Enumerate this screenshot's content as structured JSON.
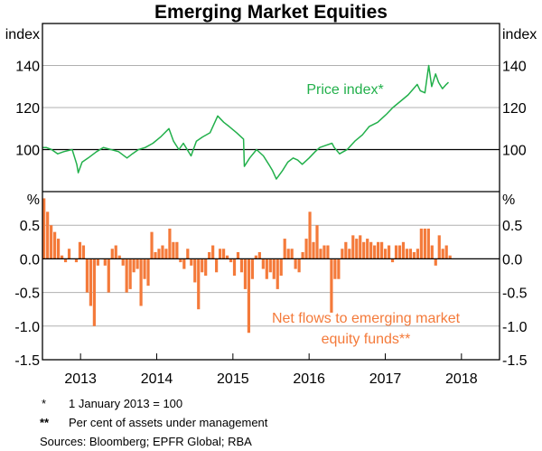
{
  "chart_data": [
    {
      "type": "line",
      "title": "Emerging Market Equities",
      "ylabel_left": "index",
      "ylabel_right": "index",
      "ylim": [
        80,
        160
      ],
      "yticks": [
        100,
        120,
        140
      ],
      "ytick_labels": [
        "100",
        "120",
        "140"
      ],
      "reference_line": 100,
      "grid": true,
      "series": [
        {
          "name": "Price index*",
          "color": "#22b04b",
          "x": [
            2012.5,
            2012.55,
            2012.62,
            2012.7,
            2012.78,
            2012.89,
            2012.95,
            2012.97,
            2013.02,
            2013.1,
            2013.21,
            2013.3,
            2013.4,
            2013.5,
            2013.61,
            2013.68,
            2013.76,
            2013.85,
            2013.95,
            2014.05,
            2014.16,
            2014.22,
            2014.29,
            2014.35,
            2014.45,
            2014.52,
            2014.6,
            2014.7,
            2014.8,
            2014.88,
            2014.95,
            2015.05,
            2015.14,
            2015.15,
            2015.22,
            2015.31,
            2015.4,
            2015.47,
            2015.52,
            2015.57,
            2015.65,
            2015.72,
            2015.79,
            2015.85,
            2015.91,
            2016.0,
            2016.08,
            2016.14,
            2016.22,
            2016.3,
            2016.33,
            2016.4,
            2016.5,
            2016.6,
            2016.7,
            2016.79,
            2016.9,
            2017.02,
            2017.1,
            2017.2,
            2017.3,
            2017.42,
            2017.46,
            2017.52,
            2017.57,
            2017.61,
            2017.66,
            2017.7,
            2017.75,
            2017.8,
            2017.83
          ],
          "values": [
            101,
            101,
            100,
            98,
            99,
            100,
            93,
            89,
            94,
            96,
            99,
            101,
            100,
            99,
            96,
            98,
            100,
            101,
            103,
            106,
            110,
            104,
            100,
            103,
            97,
            104,
            106,
            108,
            116,
            113,
            111,
            108,
            105,
            92,
            96,
            100,
            97,
            93,
            90,
            86,
            90,
            94,
            96,
            95,
            93,
            96,
            99,
            101,
            102,
            103,
            101,
            98,
            100,
            104,
            107,
            111,
            113,
            117,
            120,
            123,
            126,
            131,
            128,
            127,
            140,
            130,
            136,
            132,
            129,
            131,
            132
          ]
        }
      ],
      "annotation": "Price index*"
    },
    {
      "type": "bar",
      "ylabel_left": "%",
      "ylabel_right": "%",
      "ylim": [
        -1.5,
        1.0
      ],
      "yticks": [
        0.5,
        0,
        -0.5,
        -1.0,
        -1.5
      ],
      "ytick_labels": [
        "0.5",
        "0.0",
        "-0.5",
        "-1.0",
        "-1.5"
      ],
      "grid": true,
      "x_start": 2012.52,
      "x_end": 2017.85,
      "series": [
        {
          "name": "Net flows to emerging market equity funds**",
          "color": "#f47a3a",
          "values": [
            0.9,
            0.7,
            0.5,
            0.4,
            0.3,
            0.05,
            -0.05,
            0.15,
            0.0,
            -0.05,
            0.25,
            0.2,
            -0.5,
            -0.7,
            -1.0,
            -0.1,
            0.0,
            -0.1,
            -0.5,
            0.15,
            0.2,
            0.05,
            -0.1,
            -0.5,
            -0.45,
            -0.2,
            -0.15,
            -0.7,
            -0.3,
            -0.4,
            0.4,
            0.1,
            0.15,
            0.2,
            0.15,
            0.45,
            0.25,
            0.25,
            -0.05,
            -0.15,
            0.15,
            -0.1,
            -0.35,
            -0.75,
            -0.2,
            -0.25,
            0.1,
            0.2,
            -0.2,
            0.15,
            0.15,
            0.05,
            -0.05,
            -0.25,
            0.1,
            -0.2,
            -0.45,
            -1.1,
            -0.3,
            0.05,
            0.1,
            -0.15,
            -0.3,
            -0.2,
            -0.3,
            -0.45,
            -0.25,
            0.3,
            0.15,
            0.15,
            -0.15,
            -0.2,
            0.1,
            0.3,
            0.7,
            0.25,
            0.5,
            0.15,
            0.2,
            0.2,
            -0.8,
            -0.3,
            -0.3,
            0.15,
            0.25,
            0.15,
            0.35,
            0.3,
            0.35,
            0.25,
            0.3,
            0.25,
            0.2,
            0.25,
            0.25,
            0.15,
            0.2,
            -0.05,
            0.2,
            0.2,
            0.25,
            0.15,
            0.15,
            0.1,
            0.15,
            0.45,
            0.45,
            0.45,
            0.2,
            -0.1,
            0.35,
            0.15,
            0.2,
            0.05
          ]
        }
      ],
      "annotation": [
        "Net flows to emerging market",
        "equity funds**"
      ]
    }
  ],
  "xaxis": {
    "xlim": [
      2012.5,
      2018.5
    ],
    "tick_labels": [
      "2013",
      "2014",
      "2015",
      "2016",
      "2017",
      "2018"
    ]
  },
  "footnotes": [
    {
      "marker": "*",
      "text": "1 January 2013 = 100"
    },
    {
      "marker": "**",
      "text": "Per cent of assets under management"
    }
  ],
  "sources": "Sources: Bloomberg; EPFR Global; RBA"
}
